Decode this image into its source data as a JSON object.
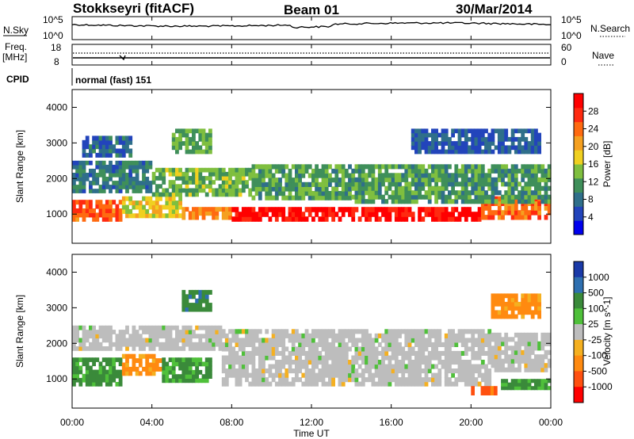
{
  "header": {
    "station": "Stokkseyri (fitACF)",
    "beam": "Beam 01",
    "date": "30/Mar/2014"
  },
  "time_axis": {
    "label": "Time UT",
    "ticks": [
      "00:00",
      "04:00",
      "08:00",
      "12:00",
      "16:00",
      "20:00",
      "00:00"
    ]
  },
  "top_panels": {
    "nsky": {
      "label": "N.Sky",
      "ticks": [
        "10^5",
        "10^0"
      ]
    },
    "nsearch": {
      "label": "N.Search",
      "ticks": [
        "10^5",
        "10^0"
      ]
    },
    "freq": {
      "label": "Freq.",
      "unit": "[MHz]",
      "ticks": [
        "18",
        "8"
      ]
    },
    "nave": {
      "label": "Nave",
      "ticks": [
        "60",
        "0"
      ]
    },
    "cpid": {
      "label": "CPID",
      "value": "normal (fast) 151"
    }
  },
  "chart_data": [
    {
      "type": "heatmap",
      "name": "power",
      "ylabel": "Slant Range [km]",
      "xlabel": "",
      "xlim_hours": [
        0,
        24
      ],
      "ylim": [
        180,
        4500
      ],
      "yticks": [
        "1000",
        "2000",
        "3000",
        "4000"
      ],
      "colorbar": {
        "label": "Power [dB]",
        "ticks": [
          "4",
          "8",
          "12",
          "16",
          "20",
          "24",
          "28"
        ],
        "colors": [
          "#0000ee",
          "#2244bb",
          "#2f6f8a",
          "#3f8f5a",
          "#7fbf3f",
          "#f0d020",
          "#f5a020",
          "#ff6a10",
          "#ff2a10",
          "#ff0000"
        ]
      },
      "regions": [
        {
          "t0": 0.0,
          "t1": 2.5,
          "r0": 800,
          "r1": 1400,
          "level": 0.78
        },
        {
          "t0": 2.5,
          "t1": 5.5,
          "r0": 900,
          "r1": 1500,
          "level": 0.55
        },
        {
          "t0": 5.5,
          "t1": 8.0,
          "r0": 850,
          "r1": 1200,
          "level": 0.7
        },
        {
          "t0": 8.0,
          "t1": 20.5,
          "r0": 800,
          "r1": 1200,
          "level": 0.93
        },
        {
          "t0": 20.5,
          "t1": 24.0,
          "r0": 850,
          "r1": 1500,
          "level": 0.75
        },
        {
          "t0": 0.0,
          "t1": 4.0,
          "r0": 1600,
          "r1": 2500,
          "level": 0.28
        },
        {
          "t0": 4.0,
          "t1": 9.0,
          "r0": 1500,
          "r1": 2300,
          "level": 0.42
        },
        {
          "t0": 9.0,
          "t1": 14.0,
          "r0": 1400,
          "r1": 2400,
          "level": 0.38
        },
        {
          "t0": 14.0,
          "t1": 24.0,
          "r0": 1300,
          "r1": 2400,
          "level": 0.36
        },
        {
          "t0": 0.5,
          "t1": 3.0,
          "r0": 2600,
          "r1": 3200,
          "level": 0.22
        },
        {
          "t0": 5.0,
          "t1": 7.0,
          "r0": 2700,
          "r1": 3400,
          "level": 0.4
        },
        {
          "t0": 17.0,
          "t1": 23.5,
          "r0": 2700,
          "r1": 3400,
          "level": 0.2
        }
      ]
    },
    {
      "type": "heatmap",
      "name": "velocity",
      "ylabel": "Slant Range [km]",
      "xlabel": "Time UT",
      "xlim_hours": [
        0,
        24
      ],
      "ylim": [
        180,
        4500
      ],
      "yticks": [
        "1000",
        "2000",
        "3000",
        "4000"
      ],
      "colorbar": {
        "label": "Velocity [m s^-1]",
        "ticks": [
          "1000",
          "500",
          "100",
          "25",
          "-25",
          "-100",
          "-500",
          "-1000"
        ],
        "colors": [
          "#1a3aa8",
          "#2e6fb0",
          "#3a8a3a",
          "#4fc03a",
          "#bdbdbd",
          "#f5b020",
          "#ff8a10",
          "#ff5010",
          "#ff0000"
        ]
      },
      "regions": [
        {
          "t0": 0.0,
          "t1": 2.5,
          "r0": 800,
          "r1": 1600,
          "level": 0.3
        },
        {
          "t0": 2.5,
          "t1": 4.5,
          "r0": 1100,
          "r1": 1700,
          "level": 0.7
        },
        {
          "t0": 4.5,
          "t1": 7.0,
          "r0": 900,
          "r1": 1600,
          "level": 0.32
        },
        {
          "t0": 0.0,
          "t1": 7.5,
          "r0": 1800,
          "r1": 2500,
          "level": 0.5
        },
        {
          "t0": 7.5,
          "t1": 21.0,
          "r0": 800,
          "r1": 2400,
          "level": 0.5
        },
        {
          "t0": 21.0,
          "t1": 24.0,
          "r0": 1200,
          "r1": 2300,
          "level": 0.5
        },
        {
          "t0": 20.0,
          "t1": 21.3,
          "r0": 550,
          "r1": 800,
          "level": 0.82
        },
        {
          "t0": 21.5,
          "t1": 24.0,
          "r0": 700,
          "r1": 1000,
          "level": 0.3
        },
        {
          "t0": 5.5,
          "t1": 7.0,
          "r0": 2900,
          "r1": 3500,
          "level": 0.25
        },
        {
          "t0": 21.0,
          "t1": 23.5,
          "r0": 2700,
          "r1": 3400,
          "level": 0.7
        }
      ]
    }
  ]
}
